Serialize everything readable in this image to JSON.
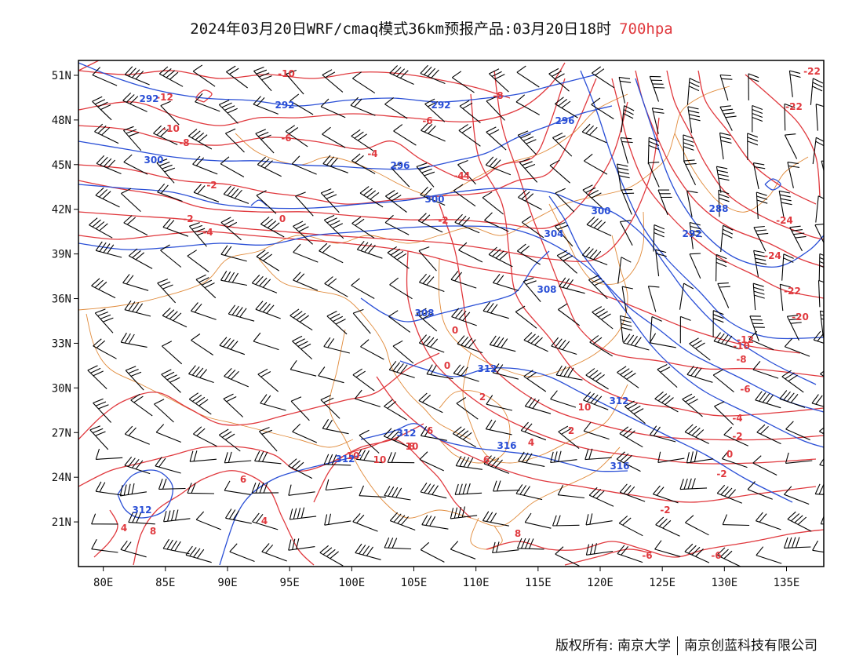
{
  "title": {
    "main": "2024年03月20日WRF/cmaq模式36km预报产品:03月20日18时",
    "level": "700hpa"
  },
  "axes": {
    "lat_labels": [
      "51N",
      "48N",
      "45N",
      "42N",
      "39N",
      "36N",
      "33N",
      "30N",
      "27N",
      "24N",
      "21N"
    ],
    "lat_values": [
      51,
      48,
      45,
      42,
      39,
      36,
      33,
      30,
      27,
      24,
      21
    ],
    "lon_labels": [
      "80E",
      "85E",
      "90E",
      "95E",
      "100E",
      "105E",
      "110E",
      "115E",
      "120E",
      "125E",
      "130E",
      "135E"
    ],
    "lon_values": [
      80,
      85,
      90,
      95,
      100,
      105,
      110,
      115,
      120,
      125,
      130,
      135
    ],
    "lon_range": [
      78,
      138
    ],
    "lat_range": [
      18,
      52
    ]
  },
  "colors": {
    "temperature": "#e0393e",
    "geopotential": "#2a4fd6",
    "boundary": "#e08a3a",
    "wind": "#000000"
  },
  "contour_labels": {
    "temperature": [
      "-10",
      "-12",
      "-10",
      "-8",
      "-6",
      "-8",
      "-6",
      "-4",
      "-4",
      "-2",
      "-2",
      "0",
      "-2",
      "-4",
      "4",
      "-22",
      "-22",
      "-24",
      "-24",
      "-22",
      "-20",
      "-10",
      "-12",
      "-8",
      "-6",
      "-4",
      "-2",
      "0",
      "-2",
      "0",
      "0",
      "10",
      "10",
      "10",
      "8",
      "6",
      "6",
      "4",
      "4",
      "8",
      "4",
      "2",
      "-6",
      "-6",
      "-2",
      "2",
      "6",
      "8",
      "10"
    ],
    "geopotential": [
      "292",
      "292",
      "292",
      "296",
      "296",
      "300",
      "300",
      "300",
      "304",
      "288",
      "292",
      "308",
      "308",
      "312",
      "312",
      "316",
      "316",
      "312",
      "312",
      "312"
    ]
  },
  "footer": {
    "copyright": "版权所有: 南京大学",
    "company": "南京创蓝科技有限公司"
  }
}
